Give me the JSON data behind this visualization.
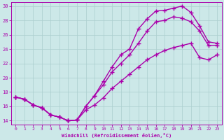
{
  "xlabel": "Windchill (Refroidissement éolien,°C)",
  "xlim": [
    -0.5,
    23.5
  ],
  "ylim": [
    13.5,
    30.5
  ],
  "xticks": [
    0,
    1,
    2,
    3,
    4,
    5,
    6,
    7,
    8,
    9,
    10,
    11,
    12,
    13,
    14,
    15,
    16,
    17,
    18,
    19,
    20,
    21,
    22,
    23
  ],
  "yticks": [
    14,
    16,
    18,
    20,
    22,
    24,
    26,
    28,
    30
  ],
  "bg_color": "#cce8e8",
  "grid_color": "#aacece",
  "line_color": "#aa00aa",
  "line1_x": [
    0,
    1,
    2,
    3,
    4,
    5,
    6,
    7,
    8,
    9,
    10,
    11,
    12,
    13,
    14,
    15,
    16,
    17,
    18,
    19,
    20,
    21,
    22,
    23
  ],
  "line1_y": [
    17.3,
    17.0,
    16.2,
    15.8,
    14.8,
    14.5,
    14.0,
    14.1,
    16.0,
    17.5,
    19.5,
    21.5,
    23.2,
    24.0,
    26.8,
    28.2,
    29.3,
    29.4,
    29.7,
    30.0,
    29.1,
    27.2,
    25.0,
    24.8
  ],
  "line2_x": [
    0,
    1,
    2,
    3,
    4,
    5,
    6,
    7,
    8,
    9,
    10,
    11,
    12,
    13,
    14,
    15,
    16,
    17,
    18,
    19,
    20,
    21,
    22,
    23
  ],
  "line2_y": [
    17.3,
    17.0,
    16.2,
    15.8,
    14.8,
    14.5,
    14.0,
    14.1,
    16.0,
    17.5,
    19.0,
    20.8,
    22.0,
    23.2,
    24.8,
    26.5,
    27.8,
    28.0,
    28.5,
    28.3,
    27.8,
    26.5,
    24.5,
    24.5
  ],
  "line3_x": [
    0,
    1,
    2,
    3,
    4,
    5,
    6,
    7,
    8,
    9,
    10,
    11,
    12,
    13,
    14,
    15,
    16,
    17,
    18,
    19,
    20,
    21,
    22,
    23
  ],
  "line3_y": [
    17.3,
    17.0,
    16.2,
    15.8,
    14.8,
    14.5,
    14.0,
    14.1,
    15.5,
    16.2,
    17.2,
    18.5,
    19.5,
    20.5,
    21.5,
    22.5,
    23.2,
    23.8,
    24.2,
    24.5,
    24.8,
    22.8,
    22.5,
    23.2
  ],
  "marker": "+",
  "markersize": 4,
  "markeredgewidth": 1.0,
  "linewidth": 1.0
}
